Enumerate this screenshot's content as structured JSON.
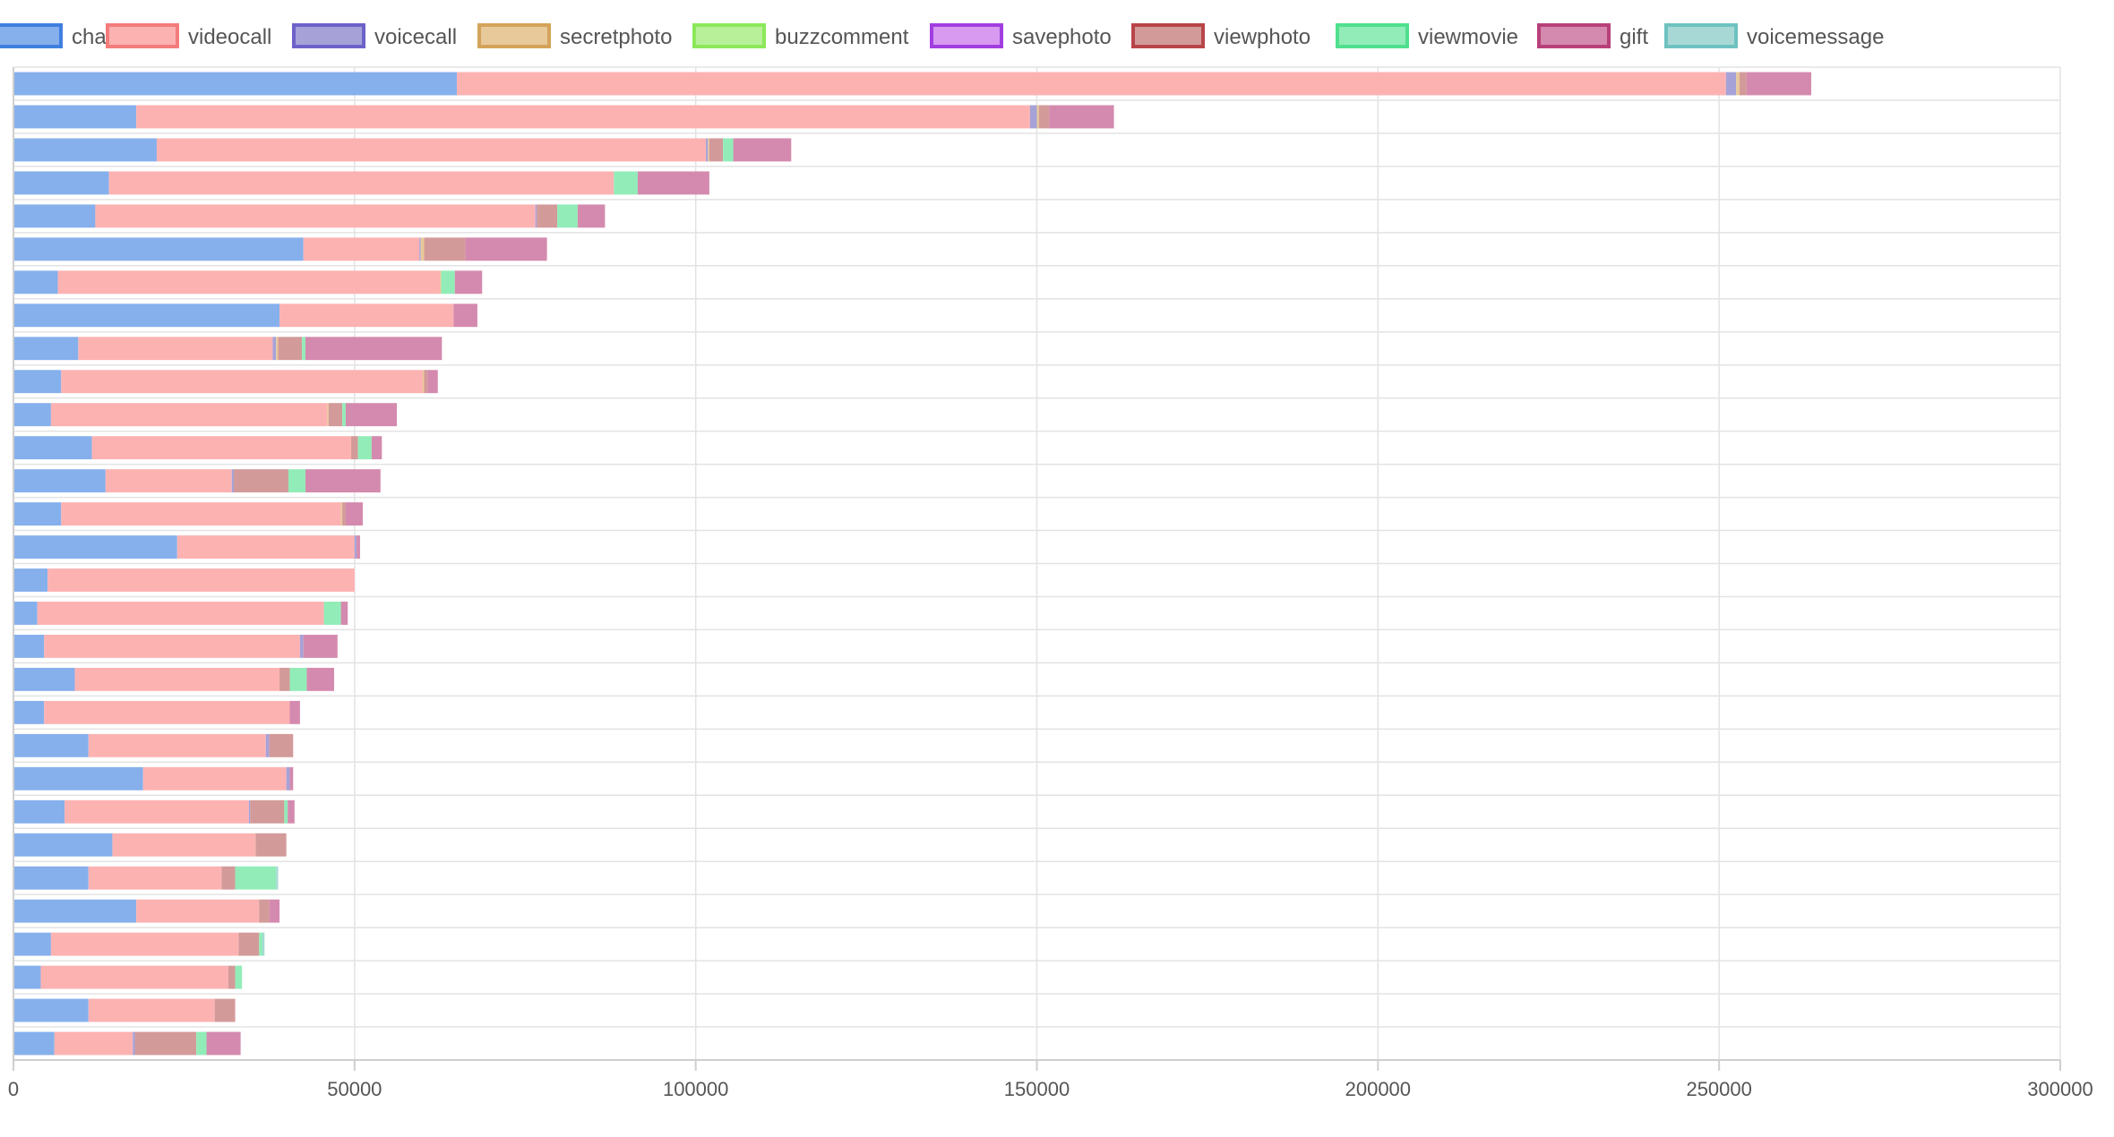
{
  "chart_data": {
    "type": "bar",
    "orientation": "horizontal",
    "stacked": true,
    "legend_position": "top",
    "grid": true,
    "xlim": [
      0,
      300000
    ],
    "x_ticks": [
      0,
      50000,
      100000,
      150000,
      200000,
      250000,
      300000
    ],
    "x_tick_labels": [
      "0",
      "50000",
      "100000",
      "150000",
      "200000",
      "250000",
      "300000"
    ],
    "categories": [
      "",
      "",
      "",
      "",
      "",
      "",
      "",
      "",
      "",
      "",
      "",
      "",
      "",
      "",
      "",
      "",
      "",
      "",
      "",
      "",
      "",
      "",
      "",
      "",
      "",
      "",
      "",
      "",
      "",
      ""
    ],
    "series": [
      {
        "name": "chat",
        "color": "#3f7fe0",
        "fill": "#86b0ec",
        "values": [
          65000,
          18000,
          21000,
          14000,
          12000,
          42500,
          6500,
          39000,
          9500,
          7000,
          5500,
          11500,
          13500,
          7000,
          24000,
          5000,
          3500,
          4500,
          9000,
          4500,
          11000,
          19000,
          7500,
          14500,
          11000,
          18000,
          5500,
          4000,
          11000,
          6000
        ]
      },
      {
        "name": "videocall",
        "color": "#f47c7c",
        "fill": "#fdb2b2",
        "values": [
          186000,
          131000,
          80500,
          74000,
          64500,
          17000,
          56000,
          25500,
          28500,
          53000,
          40500,
          38000,
          18500,
          41000,
          26000,
          45000,
          42000,
          37500,
          30000,
          36000,
          26000,
          21000,
          27000,
          21000,
          19500,
          18000,
          27500,
          27500,
          18500,
          11500
        ]
      },
      {
        "name": "voicecall",
        "color": "#6d62c9",
        "fill": "#a6a2d8",
        "values": [
          1500,
          1000,
          300,
          0,
          200,
          200,
          0,
          0,
          500,
          0,
          0,
          0,
          300,
          0,
          300,
          0,
          0,
          500,
          0,
          0,
          500,
          500,
          200,
          0,
          0,
          0,
          0,
          0,
          0,
          300
        ]
      },
      {
        "name": "secretphoto",
        "color": "#d4a35a",
        "fill": "#e8c99a",
        "values": [
          500,
          300,
          200,
          0,
          0,
          500,
          200,
          0,
          300,
          200,
          200,
          0,
          0,
          200,
          0,
          0,
          0,
          0,
          0,
          0,
          0,
          0,
          0,
          0,
          0,
          0,
          0,
          0,
          0,
          0
        ]
      },
      {
        "name": "buzzcomment",
        "color": "#8ce85a",
        "fill": "#b8f09a",
        "values": [
          0,
          0,
          0,
          0,
          0,
          0,
          0,
          0,
          0,
          0,
          0,
          0,
          0,
          0,
          0,
          0,
          0,
          0,
          0,
          0,
          0,
          0,
          0,
          0,
          0,
          0,
          0,
          0,
          0,
          0
        ]
      },
      {
        "name": "savephoto",
        "color": "#a23ee0",
        "fill": "#d79af0",
        "values": [
          0,
          0,
          0,
          0,
          0,
          0,
          0,
          0,
          0,
          0,
          0,
          0,
          0,
          0,
          0,
          0,
          0,
          0,
          0,
          0,
          0,
          0,
          0,
          0,
          0,
          0,
          0,
          0,
          0,
          0
        ]
      },
      {
        "name": "viewphoto",
        "color": "#b8454a",
        "fill": "#d39a9a",
        "values": [
          1000,
          1500,
          2000,
          0,
          3000,
          6000,
          0,
          0,
          3500,
          500,
          2000,
          1000,
          8000,
          500,
          0,
          0,
          0,
          0,
          1500,
          0,
          3500,
          0,
          5000,
          4500,
          2000,
          1500,
          3000,
          1000,
          3000,
          9000
        ]
      },
      {
        "name": "viewmovie",
        "color": "#4fe08e",
        "fill": "#92ecb8",
        "values": [
          0,
          0,
          1500,
          3500,
          3000,
          0,
          2000,
          0,
          500,
          0,
          500,
          2000,
          2500,
          0,
          0,
          0,
          2500,
          0,
          2500,
          0,
          0,
          0,
          500,
          0,
          6000,
          0,
          500,
          1000,
          0,
          1500
        ]
      },
      {
        "name": "gift",
        "color": "#b8407a",
        "fill": "#d48aae",
        "values": [
          9500,
          9500,
          8500,
          10500,
          4000,
          12000,
          4000,
          3500,
          20000,
          1500,
          7500,
          1500,
          11000,
          2500,
          500,
          0,
          1000,
          5000,
          4000,
          1500,
          0,
          500,
          1000,
          0,
          0,
          1500,
          0,
          0,
          0,
          5000
        ]
      },
      {
        "name": "voicemessage",
        "color": "#6ec2c0",
        "fill": "#a8d8d6",
        "values": [
          0,
          0,
          0,
          0,
          0,
          0,
          0,
          0,
          0,
          0,
          0,
          0,
          0,
          0,
          0,
          0,
          0,
          0,
          0,
          0,
          0,
          0,
          0,
          0,
          300,
          0,
          300,
          0,
          0,
          0
        ]
      }
    ]
  }
}
